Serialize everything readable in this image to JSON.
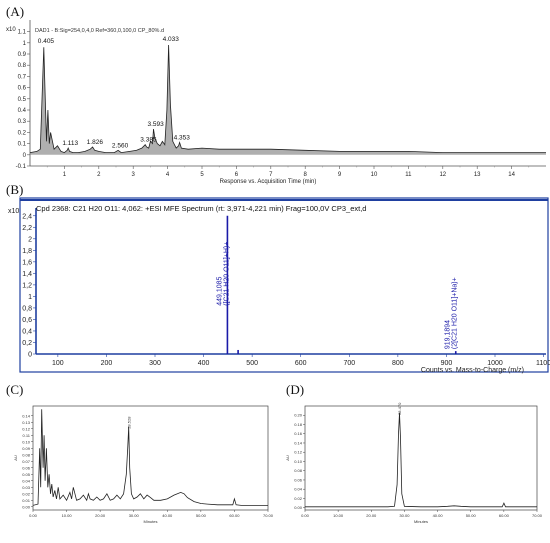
{
  "panels": {
    "a": "(A)",
    "b": "(B)",
    "c": "(C)",
    "d": "(D)"
  },
  "chart_data": [
    {
      "type": "line",
      "panel": "(A)",
      "header": "DAD1 - B:Sig=254,0,4,0  Ref=360,0,100,0 CP_80%.d",
      "y_exp": "x10",
      "y_exp_pow": "0",
      "xlabel": "Response vs. Acquisition Time (min)",
      "xlim": [
        0,
        15
      ],
      "ylim": [
        -0.1,
        1.15
      ],
      "xticks": [
        "1",
        "2",
        "3",
        "4",
        "5",
        "6",
        "7",
        "8",
        "9",
        "10",
        "11",
        "12",
        "13",
        "14"
      ],
      "yticks": [
        "-0.1",
        "0",
        "0.1",
        "0.2",
        "0.3",
        "0.4",
        "0.5",
        "0.6",
        "0.7",
        "0.8",
        "0.9",
        "1",
        "1.1"
      ],
      "peak_labels": [
        {
          "x": 0.405,
          "y": 0.97,
          "label": "0.405"
        },
        {
          "x": 1.113,
          "y": 0.06,
          "label": "1.113"
        },
        {
          "x": 1.826,
          "y": 0.07,
          "label": "1.826"
        },
        {
          "x": 2.56,
          "y": 0.04,
          "label": "2.560"
        },
        {
          "x": 3.385,
          "y": 0.09,
          "label": "3.385"
        },
        {
          "x": 3.593,
          "y": 0.23,
          "label": "3.593"
        },
        {
          "x": 4.033,
          "y": 0.99,
          "label": "4.033"
        },
        {
          "x": 4.353,
          "y": 0.11,
          "label": "4.353"
        }
      ],
      "series": [
        {
          "x": [
            0.0,
            0.2,
            0.3,
            0.36,
            0.4,
            0.44,
            0.48,
            0.52,
            0.56,
            0.6,
            0.7,
            0.8,
            0.9,
            1.0,
            1.08,
            1.11,
            1.15,
            1.25,
            1.4,
            1.6,
            1.75,
            1.82,
            1.88,
            2.0,
            2.2,
            2.45,
            2.56,
            2.65,
            2.9,
            3.1,
            3.25,
            3.35,
            3.39,
            3.45,
            3.5,
            3.56,
            3.59,
            3.63,
            3.7,
            3.78,
            3.85,
            3.92,
            3.98,
            4.03,
            4.08,
            4.15,
            4.25,
            4.32,
            4.35,
            4.4,
            4.6,
            5.0,
            5.5,
            6,
            7,
            8,
            9,
            10,
            11,
            12,
            13,
            14,
            15
          ],
          "y": [
            0.02,
            0.03,
            0.05,
            0.6,
            0.96,
            0.55,
            0.12,
            0.4,
            0.1,
            0.2,
            0.05,
            0.08,
            0.03,
            0.02,
            0.04,
            0.06,
            0.03,
            0.02,
            0.02,
            0.03,
            0.05,
            0.07,
            0.04,
            0.03,
            0.02,
            0.02,
            0.04,
            0.02,
            0.03,
            0.04,
            0.06,
            0.09,
            0.07,
            0.06,
            0.12,
            0.1,
            0.23,
            0.15,
            0.1,
            0.08,
            0.12,
            0.09,
            0.4,
            0.98,
            0.45,
            0.12,
            0.06,
            0.08,
            0.11,
            0.06,
            0.05,
            0.06,
            0.05,
            0.05,
            0.05,
            0.04,
            0.03,
            0.03,
            0.03,
            0.02,
            0.02,
            0.02,
            0.02
          ]
        }
      ]
    },
    {
      "type": "bar",
      "panel": "(B)",
      "header": "Cpd 2368: C21 H20 O11: 4,062: +ESI MFE Spectrum (rt: 3,971-4,221 min) Frag=100,0V CP3_ext,d",
      "y_exp": "x10",
      "y_exp_pow": "6",
      "xlabel": "Counts vs. Mass-to-Charge (m/z)",
      "xlim": [
        55,
        1105
      ],
      "ylim": [
        0,
        2.5
      ],
      "xticks": [
        "100",
        "200",
        "300",
        "400",
        "500",
        "600",
        "700",
        "800",
        "900",
        "1000",
        "1100"
      ],
      "yticks": [
        "0",
        "0,2",
        "0,4",
        "0,6",
        "0,8",
        "1",
        "1,2",
        "1,4",
        "1,6",
        "1,8",
        "2",
        "2,2",
        "2,4"
      ],
      "peaks": [
        {
          "mz": 449.1085,
          "value": 2.4,
          "label": "449,1085",
          "label2": "([C21 H20 O11]+H)+"
        },
        {
          "mz": 471.09,
          "value": 0.07,
          "label": "",
          "label2": ""
        },
        {
          "mz": 919.1894,
          "value": 0.05,
          "label": "919,1894",
          "label2": "(2[C21 H20 O11]+Na)+"
        }
      ]
    },
    {
      "type": "line",
      "panel": "(C)",
      "ylabel": "AU",
      "xlabel": "Minutes",
      "xlim": [
        0,
        70
      ],
      "ylim": [
        -0.005,
        0.155
      ],
      "xticks": [
        "0.00",
        "10.00",
        "20.00",
        "30.00",
        "40.00",
        "50.00",
        "60.00",
        "70.00"
      ],
      "yticks": [
        "0.00",
        "0.01",
        "0.02",
        "0.03",
        "0.04",
        "0.05",
        "0.06",
        "0.07",
        "0.08",
        "0.09",
        "0.10",
        "0.11",
        "0.12",
        "0.13",
        "0.14"
      ],
      "peak_labels": [
        {
          "x": 28.528,
          "y": 0.123,
          "label": "28.528"
        }
      ],
      "series": [
        {
          "x": [
            0,
            1.5,
            2.0,
            2.3,
            2.6,
            3.0,
            3.3,
            3.6,
            4.0,
            4.4,
            4.8,
            5.2,
            5.6,
            6.0,
            6.5,
            7.0,
            7.5,
            8.0,
            9,
            10,
            11,
            11.5,
            12,
            13,
            14,
            15,
            16,
            16.5,
            17,
            18,
            19,
            20,
            21,
            22,
            23,
            24,
            25,
            26,
            27,
            27.8,
            28.2,
            28.5,
            28.8,
            29.3,
            30,
            31,
            32,
            33,
            34,
            35,
            36,
            38,
            40,
            42,
            43,
            44,
            45,
            46,
            48,
            50,
            52,
            55,
            58,
            59.5,
            60,
            60.5,
            62,
            65,
            70
          ],
          "y": [
            0.002,
            0.004,
            0.09,
            0.03,
            0.15,
            0.06,
            0.11,
            0.04,
            0.09,
            0.03,
            0.05,
            0.02,
            0.035,
            0.015,
            0.025,
            0.012,
            0.03,
            0.012,
            0.018,
            0.01,
            0.022,
            0.012,
            0.03,
            0.01,
            0.012,
            0.018,
            0.01,
            0.02,
            0.012,
            0.01,
            0.015,
            0.01,
            0.012,
            0.02,
            0.01,
            0.012,
            0.018,
            0.012,
            0.02,
            0.05,
            0.09,
            0.123,
            0.06,
            0.02,
            0.012,
            0.015,
            0.02,
            0.012,
            0.018,
            0.014,
            0.01,
            0.01,
            0.012,
            0.018,
            0.02,
            0.022,
            0.02,
            0.014,
            0.008,
            0.005,
            0.004,
            0.003,
            0.003,
            0.003,
            0.012,
            0.003,
            0.002,
            0.002,
            0.002
          ]
        }
      ]
    },
    {
      "type": "line",
      "panel": "(D)",
      "ylabel": "AU",
      "xlabel": "Minutes",
      "xlim": [
        0,
        70
      ],
      "ylim": [
        -0.005,
        0.22
      ],
      "xticks": [
        "0.00",
        "10.00",
        "20.00",
        "30.00",
        "40.00",
        "50.00",
        "60.00",
        "70.00"
      ],
      "yticks": [
        "0.00",
        "0.02",
        "0.04",
        "0.06",
        "0.08",
        "0.10",
        "0.12",
        "0.14",
        "0.16",
        "0.18",
        "0.20"
      ],
      "peak_labels": [
        {
          "x": 28.5,
          "y": 0.205,
          "label": "28.470"
        }
      ],
      "series": [
        {
          "x": [
            0,
            5,
            10,
            15,
            20,
            25,
            27,
            27.8,
            28.2,
            28.5,
            28.8,
            29.2,
            30,
            35,
            40,
            43,
            45,
            47,
            50,
            55,
            58,
            59.5,
            60,
            60.5,
            62,
            65,
            70
          ],
          "y": [
            0.002,
            0.002,
            0.002,
            0.002,
            0.002,
            0.002,
            0.003,
            0.05,
            0.16,
            0.205,
            0.15,
            0.03,
            0.003,
            0.002,
            0.002,
            0.003,
            0.004,
            0.003,
            0.002,
            0.002,
            0.002,
            0.002,
            0.01,
            0.002,
            0.002,
            0.002,
            0.002
          ]
        }
      ]
    }
  ]
}
